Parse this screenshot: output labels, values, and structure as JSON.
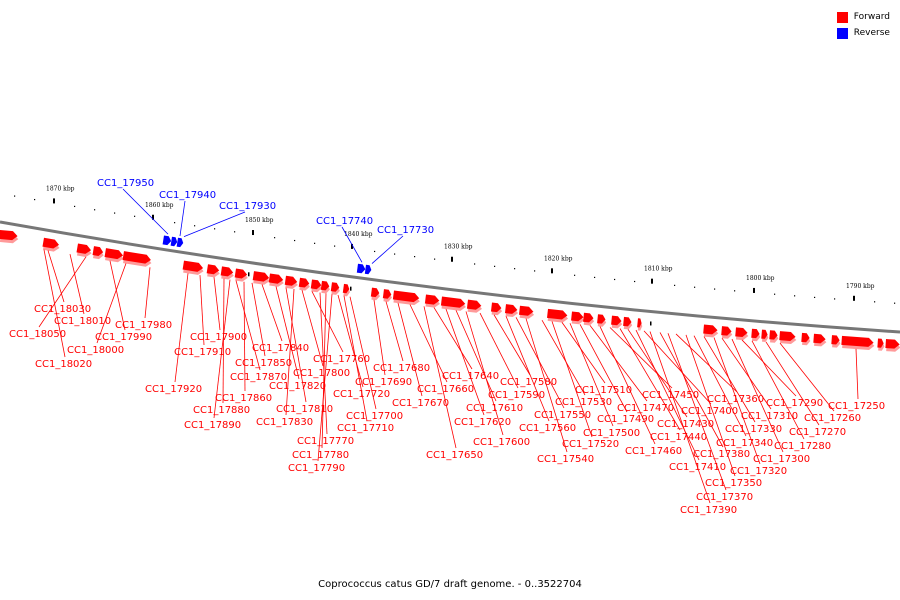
{
  "legend": {
    "items": [
      {
        "label": "Forward",
        "color": "#ff0000"
      },
      {
        "label": "Reverse",
        "color": "#0000ff"
      }
    ]
  },
  "caption": "Coprococcus catus GD/7 draft genome. - 0..3522704",
  "scale_labels": [
    "1870 kbp",
    "1860 kbp",
    "1850 kbp",
    "1840 kbp",
    "1830 kbp",
    "1820 kbp",
    "1810 kbp",
    "1800 kbp",
    "1790 kbp"
  ],
  "reverse_genes": [
    "CC1_17950",
    "CC1_17940",
    "CC1_17930",
    "CC1_17740",
    "CC1_17730"
  ],
  "forward_genes": [
    "CC1_18030",
    "CC1_18010",
    "CC1_18050",
    "CC1_17990",
    "CC1_18000",
    "CC1_18020",
    "CC1_17980",
    "CC1_17920",
    "CC1_17910",
    "CC1_17900",
    "CC1_17880",
    "CC1_17890",
    "CC1_17870",
    "CC1_17860",
    "CC1_17850",
    "CC1_17840",
    "CC1_17820",
    "CC1_17810",
    "CC1_17830",
    "CC1_17800",
    "CC1_17760",
    "CC1_17770",
    "CC1_17780",
    "CC1_17790",
    "CC1_17720",
    "CC1_17710",
    "CC1_17700",
    "CC1_17690",
    "CC1_17680",
    "CC1_17670",
    "CC1_17660",
    "CC1_17650",
    "CC1_17640",
    "CC1_17620",
    "CC1_17610",
    "CC1_17600",
    "CC1_17590",
    "CC1_17580",
    "CC1_17560",
    "CC1_17550",
    "CC1_17540",
    "CC1_17530",
    "CC1_17520",
    "CC1_17510",
    "CC1_17500",
    "CC1_17490",
    "CC1_17470",
    "CC1_17460",
    "CC1_17450",
    "CC1_17440",
    "CC1_17430",
    "CC1_17410",
    "CC1_17400",
    "CC1_17390",
    "CC1_17380",
    "CC1_17370",
    "CC1_17360",
    "CC1_17350",
    "CC1_17340",
    "CC1_17330",
    "CC1_17320",
    "CC1_17310",
    "CC1_17300",
    "CC1_17290",
    "CC1_17280",
    "CC1_17270",
    "CC1_17260",
    "CC1_17250"
  ]
}
